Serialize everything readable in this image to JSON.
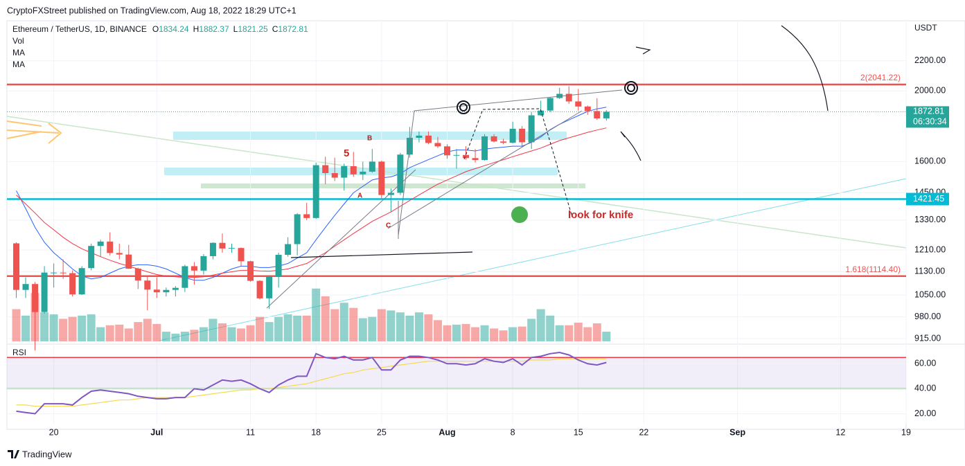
{
  "header": {
    "publisher": "CryptoFXStreet published on TradingView.com, Aug 18, 2022 18:29 UTC+1",
    "footer": "TradingView"
  },
  "chart_data": {
    "type": "candlestick",
    "title": "Ethereum / TetherUS, 1D, BINANCE",
    "ohlc_prefixes": [
      "O",
      "H",
      "L",
      "C"
    ],
    "x": [
      "2022-06-16",
      "2022-06-17",
      "2022-06-18",
      "2022-06-19",
      "2022-06-20",
      "2022-06-21",
      "2022-06-22",
      "2022-06-23",
      "2022-06-24",
      "2022-06-25",
      "2022-06-26",
      "2022-06-27",
      "2022-06-28",
      "2022-06-29",
      "2022-06-30",
      "2022-07-01",
      "2022-07-02",
      "2022-07-03",
      "2022-07-04",
      "2022-07-05",
      "2022-07-06",
      "2022-07-07",
      "2022-07-08",
      "2022-07-09",
      "2022-07-10",
      "2022-07-11",
      "2022-07-12",
      "2022-07-13",
      "2022-07-14",
      "2022-07-15",
      "2022-07-16",
      "2022-07-17",
      "2022-07-18",
      "2022-07-19",
      "2022-07-20",
      "2022-07-21",
      "2022-07-22",
      "2022-07-23",
      "2022-07-24",
      "2022-07-25",
      "2022-07-26",
      "2022-07-27",
      "2022-07-28",
      "2022-07-29",
      "2022-07-30",
      "2022-07-31",
      "2022-08-01",
      "2022-08-02",
      "2022-08-03",
      "2022-08-04",
      "2022-08-05",
      "2022-08-06",
      "2022-08-07",
      "2022-08-08",
      "2022-08-09",
      "2022-08-10",
      "2022-08-11",
      "2022-08-12",
      "2022-08-13",
      "2022-08-14",
      "2022-08-15",
      "2022-08-16",
      "2022-08-17",
      "2022-08-18"
    ],
    "open": [
      1236,
      1067,
      1087,
      995,
      1127,
      1127,
      1125,
      1052,
      1143,
      1226,
      1243,
      1199,
      1193,
      1141,
      1099,
      1068,
      1059,
      1067,
      1074,
      1150,
      1134,
      1187,
      1238,
      1216,
      1218,
      1168,
      1098,
      1039,
      1112,
      1192,
      1233,
      1355,
      1339,
      1582,
      1543,
      1521,
      1577,
      1537,
      1550,
      1600,
      1440,
      1450,
      1636,
      1725,
      1737,
      1697,
      1679,
      1632,
      1634,
      1618,
      1608,
      1733,
      1705,
      1698,
      1775,
      1701,
      1852,
      1880,
      1956,
      1982,
      1935,
      1904,
      1877,
      1834.24
    ],
    "high": [
      1240,
      1110,
      1094,
      1150,
      1160,
      1175,
      1135,
      1150,
      1235,
      1250,
      1280,
      1235,
      1230,
      1145,
      1115,
      1110,
      1075,
      1080,
      1155,
      1165,
      1195,
      1240,
      1275,
      1235,
      1220,
      1170,
      1100,
      1115,
      1200,
      1260,
      1360,
      1405,
      1595,
      1625,
      1620,
      1590,
      1650,
      1600,
      1665,
      1605,
      1470,
      1645,
      1785,
      1760,
      1760,
      1730,
      1690,
      1665,
      1680,
      1665,
      1745,
      1745,
      1720,
      1815,
      1790,
      1870,
      1940,
      1960,
      2020,
      2030,
      2012,
      1910,
      1955,
      1882.37
    ],
    "low": [
      1040,
      1040,
      881,
      990,
      1075,
      1105,
      1045,
      1050,
      1135,
      1185,
      1190,
      1175,
      1140,
      1070,
      1000,
      1040,
      1045,
      1045,
      1060,
      1085,
      1120,
      1175,
      1200,
      1200,
      1150,
      1095,
      1035,
      1005,
      1075,
      1185,
      1190,
      1330,
      1335,
      1490,
      1505,
      1460,
      1525,
      1510,
      1545,
      1425,
      1365,
      1440,
      1620,
      1700,
      1690,
      1670,
      1615,
      1565,
      1610,
      1595,
      1605,
      1700,
      1690,
      1695,
      1680,
      1665,
      1850,
      1870,
      1950,
      1920,
      1880,
      1855,
      1825,
      1821.25
    ],
    "close": [
      1067,
      1087,
      995,
      1127,
      1127,
      1125,
      1052,
      1143,
      1226,
      1243,
      1199,
      1193,
      1141,
      1099,
      1068,
      1059,
      1067,
      1074,
      1150,
      1134,
      1187,
      1238,
      1216,
      1218,
      1168,
      1098,
      1039,
      1112,
      1192,
      1233,
      1355,
      1339,
      1582,
      1543,
      1521,
      1577,
      1537,
      1550,
      1600,
      1440,
      1450,
      1636,
      1725,
      1737,
      1697,
      1679,
      1632,
      1634,
      1618,
      1608,
      1733,
      1705,
      1698,
      1775,
      1701,
      1852,
      1880,
      1956,
      1982,
      1935,
      1904,
      1877,
      1834,
      1872.81
    ],
    "up_color": "#26a69a",
    "down_color": "#ef5350",
    "log_scale": true,
    "grid": true,
    "ylim": [
      903,
      2480
    ],
    "yticks": [
      {
        "value": 915,
        "label": "915.00"
      },
      {
        "value": 980,
        "label": "980.00"
      },
      {
        "value": 1050,
        "label": "1050.00"
      },
      {
        "value": 1130,
        "label": "1130.00"
      },
      {
        "value": 1210,
        "label": "1210.00"
      },
      {
        "value": 1330,
        "label": "1330.00"
      },
      {
        "value": 1450,
        "label": "1450.00"
      },
      {
        "value": 1600,
        "label": "1600.00"
      },
      {
        "value": 2000,
        "label": "2000.00"
      },
      {
        "value": 2200,
        "label": "2200.00"
      }
    ],
    "y_unit": "USDT",
    "countdown": "06:30:34",
    "xlim": [
      "2022-06-15",
      "2022-09-19"
    ],
    "xticks": [
      {
        "value": "2022-06-20",
        "label": "20"
      },
      {
        "value": "2022-07-01",
        "label": "Jul"
      },
      {
        "value": "2022-07-11",
        "label": "11"
      },
      {
        "value": "2022-07-18",
        "label": "18"
      },
      {
        "value": "2022-07-25",
        "label": "25"
      },
      {
        "value": "2022-08-01",
        "label": "Aug"
      },
      {
        "value": "2022-08-08",
        "label": "8"
      },
      {
        "value": "2022-08-15",
        "label": "15"
      },
      {
        "value": "2022-08-22",
        "label": "22"
      },
      {
        "value": "2022-09-01",
        "label": "Sep"
      },
      {
        "value": "2022-09-12",
        "label": "12"
      },
      {
        "value": "2022-09-19",
        "label": "19"
      }
    ],
    "volume": {
      "name": "Vol",
      "ylim": [
        0,
        100
      ],
      "values": [
        50,
        40,
        75,
        45,
        42,
        35,
        38,
        40,
        42,
        22,
        25,
        26,
        20,
        30,
        35,
        27,
        15,
        12,
        15,
        18,
        22,
        35,
        28,
        22,
        20,
        25,
        38,
        30,
        38,
        42,
        40,
        40,
        82,
        70,
        50,
        60,
        52,
        36,
        38,
        50,
        48,
        45,
        40,
        45,
        42,
        33,
        25,
        26,
        27,
        22,
        25,
        20,
        17,
        22,
        23,
        35,
        50,
        40,
        25,
        25,
        29,
        22,
        28,
        15
      ]
    },
    "moving_averages": [
      {
        "name": "MA",
        "color": "#2962ff",
        "values": [
          1460,
          1380,
          1300,
          1240,
          1200,
          1170,
          1140,
          1115,
          1105,
          1110,
          1125,
          1140,
          1150,
          1155,
          1155,
          1150,
          1140,
          1125,
          1110,
          1100,
          1100,
          1110,
          1125,
          1140,
          1150,
          1150,
          1145,
          1145,
          1150,
          1160,
          1180,
          1200,
          1250,
          1300,
          1350,
          1400,
          1450,
          1480,
          1510,
          1520,
          1525,
          1540,
          1570,
          1590,
          1610,
          1630,
          1650,
          1660,
          1660,
          1655,
          1665,
          1670,
          1675,
          1680,
          1680,
          1700,
          1730,
          1770,
          1800,
          1825,
          1850,
          1875,
          1890,
          1900
        ]
      },
      {
        "name": "MA",
        "color": "#f23645",
        "values": [
          1440,
          1400,
          1360,
          1320,
          1290,
          1260,
          1235,
          1215,
          1200,
          1185,
          1172,
          1160,
          1150,
          1140,
          1130,
          1120,
          1115,
          1112,
          1110,
          1110,
          1112,
          1118,
          1125,
          1130,
          1135,
          1135,
          1133,
          1132,
          1135,
          1140,
          1150,
          1160,
          1180,
          1200,
          1225,
          1250,
          1275,
          1300,
          1325,
          1345,
          1365,
          1390,
          1415,
          1440,
          1465,
          1490,
          1510,
          1530,
          1550,
          1565,
          1580,
          1595,
          1610,
          1625,
          1640,
          1655,
          1670,
          1690,
          1710,
          1725,
          1740,
          1755,
          1768,
          1780
        ]
      }
    ],
    "levels": [
      {
        "value": 2041.22,
        "label": "2(2041.22)",
        "color": "#ef5350"
      },
      {
        "value": 1421.45,
        "color": "#00bcd4"
      },
      {
        "value": 1114.4,
        "label": "1.618(1114.40)",
        "color": "#ef5350"
      }
    ],
    "annotations": {
      "knife": "look for knife",
      "wave": "5",
      "a": "A",
      "b": "B",
      "c": "C"
    },
    "rsi": {
      "name": "RSI",
      "color": "#7e57c2",
      "ma_color": "#f7d94c",
      "ylim": [
        12,
        74
      ],
      "yticks": [
        {
          "value": 20,
          "label": "20.00"
        },
        {
          "value": 40,
          "label": "40.00"
        },
        {
          "value": 60,
          "label": "60.00"
        }
      ],
      "levels": [
        65,
        40
      ],
      "values": [
        22,
        21,
        20,
        28,
        28,
        28,
        27,
        33,
        38,
        39,
        38,
        37,
        36,
        34,
        33,
        32,
        32,
        33,
        33,
        40,
        39,
        43,
        47,
        46,
        47,
        44,
        40,
        37,
        43,
        47,
        50,
        50,
        68,
        65,
        64,
        66,
        63,
        63,
        65,
        55,
        55,
        63,
        66,
        66,
        65,
        63,
        60,
        60,
        59,
        60,
        64,
        62,
        61,
        64,
        59,
        65,
        66,
        68,
        69,
        67,
        63,
        60,
        59,
        61
      ],
      "ma": [
        27,
        27,
        26,
        26,
        26,
        26,
        26,
        27,
        28,
        29,
        30,
        31,
        31,
        32,
        33,
        33,
        33,
        33,
        33,
        34,
        35,
        36,
        37,
        38,
        39,
        39,
        40,
        40,
        41,
        42,
        43,
        44,
        46,
        48,
        50,
        52,
        53,
        55,
        56,
        57,
        58,
        59,
        60,
        61,
        62,
        62,
        62,
        62,
        62,
        62,
        62,
        62,
        62,
        62,
        62,
        63,
        63,
        63,
        64,
        64,
        64,
        64,
        64,
        64
      ]
    }
  }
}
